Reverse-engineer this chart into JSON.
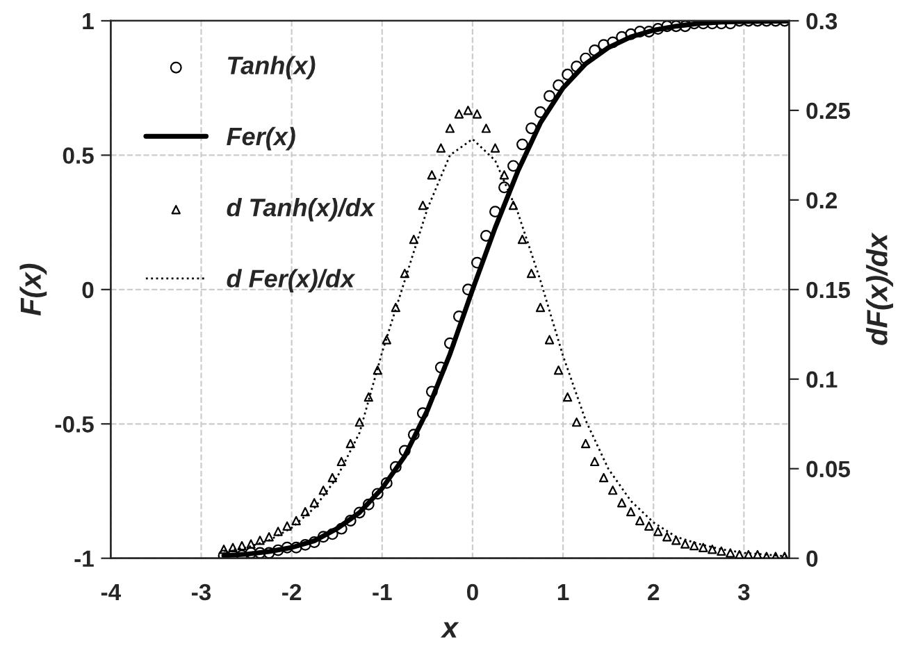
{
  "chart_data": {
    "type": "scatter",
    "xlabel": "x",
    "ylabel": "F(x)",
    "y2label": "dF(x)/dx",
    "x": [
      -2.75,
      -2.65,
      -2.55,
      -2.45,
      -2.35,
      -2.25,
      -2.15,
      -2.05,
      -1.95,
      -1.85,
      -1.75,
      -1.65,
      -1.55,
      -1.45,
      -1.35,
      -1.25,
      -1.15,
      -1.05,
      -0.95,
      -0.85,
      -0.75,
      -0.65,
      -0.55,
      -0.45,
      -0.35,
      -0.25,
      -0.15,
      -0.05,
      0.05,
      0.15,
      0.25,
      0.35,
      0.45,
      0.55,
      0.65,
      0.75,
      0.85,
      0.95,
      1.05,
      1.15,
      1.25,
      1.35,
      1.45,
      1.55,
      1.65,
      1.75,
      1.85,
      1.95,
      2.05,
      2.15,
      2.25,
      2.35,
      2.45,
      2.55,
      2.65,
      2.75,
      2.85,
      2.95,
      3.05,
      3.15,
      3.25,
      3.35,
      3.45
    ],
    "series": [
      {
        "name": "Tanh(x)",
        "marker": "circle",
        "color": "#000000",
        "values": [
          -0.99,
          -0.99,
          -0.99,
          -0.98,
          -0.98,
          -0.98,
          -0.97,
          -0.96,
          -0.96,
          -0.95,
          -0.94,
          -0.92,
          -0.91,
          -0.89,
          -0.86,
          -0.83,
          -0.8,
          -0.76,
          -0.72,
          -0.66,
          -0.6,
          -0.54,
          -0.46,
          -0.38,
          -0.29,
          -0.2,
          -0.1,
          0,
          0.1,
          0.2,
          0.29,
          0.38,
          0.46,
          0.54,
          0.6,
          0.66,
          0.72,
          0.76,
          0.8,
          0.83,
          0.86,
          0.89,
          0.91,
          0.92,
          0.94,
          0.95,
          0.96,
          0.96,
          0.97,
          0.98,
          0.98,
          0.98,
          0.99,
          0.99,
          0.99,
          0.99,
          0.99,
          1.0,
          1.0,
          1.0,
          1.0,
          1.0,
          1.0
        ]
      },
      {
        "name": "Fer(x)",
        "type": "line",
        "line_style": "solid",
        "color": "#000000",
        "x": [
          -2.75,
          -2.5,
          -2.25,
          -2,
          -1.75,
          -1.5,
          -1.25,
          -1,
          -0.75,
          -0.5,
          -0.25,
          0,
          0.25,
          0.5,
          0.75,
          1,
          1.25,
          1.5,
          1.75,
          2,
          2.25,
          2.5,
          2.75,
          3,
          3.5
        ],
        "values": [
          -0.99,
          -0.985,
          -0.975,
          -0.96,
          -0.935,
          -0.89,
          -0.83,
          -0.74,
          -0.62,
          -0.45,
          -0.24,
          0.0,
          0.23,
          0.44,
          0.62,
          0.75,
          0.84,
          0.9,
          0.94,
          0.965,
          0.98,
          0.99,
          0.995,
          0.997,
          0.999
        ]
      },
      {
        "name": "d Tanh(x)/dx",
        "marker": "triangle",
        "axis": "y2",
        "color": "#000000",
        "values": [
          0.005,
          0.006,
          0.007,
          0.008,
          0.01,
          0.012,
          0.015,
          0.018,
          0.021,
          0.026,
          0.031,
          0.038,
          0.045,
          0.054,
          0.064,
          0.076,
          0.09,
          0.105,
          0.122,
          0.14,
          0.159,
          0.178,
          0.197,
          0.214,
          0.229,
          0.24,
          0.248,
          0.25,
          0.248,
          0.24,
          0.229,
          0.214,
          0.197,
          0.178,
          0.159,
          0.14,
          0.122,
          0.105,
          0.09,
          0.076,
          0.064,
          0.054,
          0.045,
          0.038,
          0.031,
          0.026,
          0.021,
          0.018,
          0.015,
          0.012,
          0.01,
          0.008,
          0.007,
          0.006,
          0.005,
          0.004,
          0.003,
          0.002,
          0.002,
          0.002,
          0.001,
          0.001,
          0.001
        ]
      },
      {
        "name": "d Fer(x)/dx",
        "type": "line",
        "line_style": "dotted",
        "axis": "y2",
        "color": "#000000",
        "x": [
          -2.75,
          -2.5,
          -2.25,
          -2,
          -1.75,
          -1.5,
          -1.25,
          -1,
          -0.75,
          -0.5,
          -0.25,
          0,
          0.25,
          0.5,
          0.75,
          1,
          1.25,
          1.5,
          1.75,
          2,
          2.25,
          2.5,
          2.75,
          3,
          3.25,
          3.5
        ],
        "values": [
          0.004,
          0.006,
          0.01,
          0.017,
          0.028,
          0.045,
          0.07,
          0.115,
          0.155,
          0.195,
          0.225,
          0.234,
          0.222,
          0.193,
          0.155,
          0.113,
          0.077,
          0.05,
          0.032,
          0.02,
          0.012,
          0.008,
          0.005,
          0.003,
          0.002,
          0.001
        ]
      }
    ],
    "xlim": [
      -4,
      3.5
    ],
    "xticks": [
      -4,
      -3,
      -2,
      -1,
      0,
      1,
      2,
      3
    ],
    "ylim": [
      -1,
      1
    ],
    "yticks": [
      -1,
      -0.5,
      0,
      0.5,
      1
    ],
    "y2lim": [
      0,
      0.3
    ],
    "y2ticks": [
      0,
      0.05,
      0.1,
      0.15,
      0.2,
      0.25,
      0.3
    ],
    "grid": true,
    "legend": "top left"
  }
}
